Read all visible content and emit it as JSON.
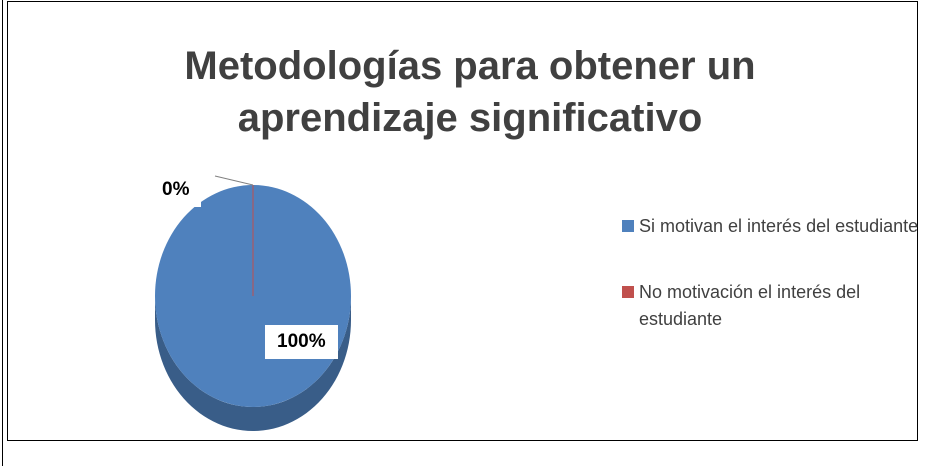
{
  "chart_data": {
    "type": "pie",
    "title": "Metodologías para obtener un aprendizaje significativo",
    "categories": [
      "Si motivan el interés del estudiante",
      "No motivación el interés del estudiante"
    ],
    "values": [
      100,
      0
    ],
    "value_labels": [
      "100%",
      "0%"
    ],
    "colors": [
      "#4f81bd",
      "#c0504d"
    ],
    "legend": "right"
  }
}
